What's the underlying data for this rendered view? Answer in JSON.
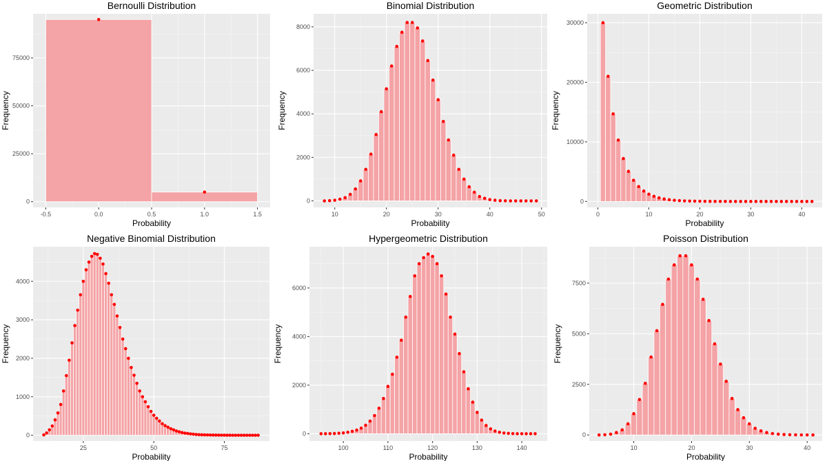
{
  "chart_data": [
    {
      "type": "bar",
      "title": "Bernoulli Distribution",
      "xlabel": "Probability",
      "ylabel": "Frequency",
      "xlim": [
        -0.62,
        1.62
      ],
      "ylim": [
        -3000,
        98000
      ],
      "xticks": [
        -0.5,
        0.0,
        0.5,
        1.0,
        1.5
      ],
      "xtick_labels": [
        "-0.5",
        "0.0",
        "0.5",
        "1.0",
        "1.5"
      ],
      "yticks": [
        0,
        25000,
        50000,
        75000
      ],
      "ytick_labels": [
        "0",
        "25000",
        "50000",
        "75000"
      ],
      "bar_width": 1,
      "x": [
        0,
        1
      ],
      "values": [
        95000,
        5000
      ]
    },
    {
      "type": "bar",
      "title": "Binomial Distribution",
      "xlabel": "Probability",
      "ylabel": "Frequency",
      "xlim": [
        5.9,
        51.1
      ],
      "ylim": [
        -300,
        8600
      ],
      "xticks": [
        10,
        20,
        30,
        40,
        50
      ],
      "xtick_labels": [
        "10",
        "20",
        "30",
        "40",
        "50"
      ],
      "yticks": [
        0,
        2000,
        4000,
        6000,
        8000
      ],
      "ytick_labels": [
        "0",
        "2000",
        "4000",
        "6000",
        "8000"
      ],
      "bar_width": 1,
      "x": [
        8,
        9,
        10,
        11,
        12,
        13,
        14,
        15,
        16,
        17,
        18,
        19,
        20,
        21,
        22,
        23,
        24,
        25,
        26,
        27,
        28,
        29,
        30,
        31,
        32,
        33,
        34,
        35,
        36,
        37,
        38,
        39,
        40,
        41,
        42,
        43,
        44,
        45,
        46,
        47,
        48,
        49
      ],
      "values": [
        0,
        10,
        30,
        80,
        150,
        300,
        550,
        920,
        1450,
        2150,
        3050,
        4100,
        5150,
        6200,
        7100,
        7750,
        8200,
        8200,
        7950,
        7350,
        6450,
        5550,
        4650,
        3650,
        2800,
        2100,
        1450,
        1000,
        650,
        400,
        200,
        120,
        60,
        30,
        10,
        5,
        0,
        0,
        0,
        0,
        0,
        0
      ]
    },
    {
      "type": "bar",
      "title": "Geometric Distribution",
      "xlabel": "Probability",
      "ylabel": "Frequency",
      "xlim": [
        -2.1,
        44.0
      ],
      "ylim": [
        -1000,
        31500
      ],
      "xticks": [
        0,
        10,
        20,
        30,
        40
      ],
      "xtick_labels": [
        "0",
        "10",
        "20",
        "30",
        "40"
      ],
      "yticks": [
        0,
        10000,
        20000,
        30000
      ],
      "ytick_labels": [
        "0",
        "10000",
        "20000",
        "30000"
      ],
      "bar_width": 1,
      "x": [
        1,
        2,
        3,
        4,
        5,
        6,
        7,
        8,
        9,
        10,
        11,
        12,
        13,
        14,
        15,
        16,
        17,
        18,
        19,
        20,
        21,
        22,
        23,
        24,
        25,
        26,
        27,
        28,
        29,
        30,
        31,
        32,
        33,
        34,
        35,
        36,
        37,
        38,
        39,
        40,
        41,
        42
      ],
      "values": [
        30000,
        21000,
        14700,
        10300,
        7200,
        5050,
        3550,
        2500,
        1750,
        1220,
        860,
        600,
        420,
        290,
        200,
        140,
        100,
        70,
        50,
        35,
        25,
        15,
        10,
        5,
        5,
        0,
        0,
        0,
        0,
        0,
        0,
        0,
        0,
        0,
        0,
        0,
        0,
        0,
        0,
        0,
        0,
        0
      ]
    },
    {
      "type": "bar",
      "title": "Negative Binomial Distribution",
      "xlabel": "Probability",
      "ylabel": "Frequency",
      "xlim": [
        7.2,
        91.0
      ],
      "ylim": [
        -150,
        4900
      ],
      "xticks": [
        25,
        50,
        75
      ],
      "xtick_labels": [
        "25",
        "50",
        "75"
      ],
      "yticks": [
        0,
        1000,
        2000,
        3000,
        4000
      ],
      "ytick_labels": [
        "0",
        "1000",
        "2000",
        "3000",
        "4000"
      ],
      "bar_width": 1,
      "x": [
        11,
        12,
        13,
        14,
        15,
        16,
        17,
        18,
        19,
        20,
        21,
        22,
        23,
        24,
        25,
        26,
        27,
        28,
        29,
        30,
        31,
        32,
        33,
        34,
        35,
        36,
        37,
        38,
        39,
        40,
        41,
        42,
        43,
        44,
        45,
        46,
        47,
        48,
        49,
        50,
        51,
        52,
        53,
        54,
        55,
        56,
        57,
        58,
        59,
        60,
        61,
        62,
        63,
        64,
        65,
        66,
        67,
        68,
        69,
        70,
        71,
        72,
        73,
        74,
        75,
        76,
        77,
        78,
        79,
        80,
        81,
        82,
        83,
        84,
        85,
        86,
        87
      ],
      "values": [
        10,
        60,
        140,
        240,
        400,
        580,
        800,
        1150,
        1550,
        1950,
        2400,
        2850,
        3250,
        3650,
        4000,
        4300,
        4500,
        4650,
        4720,
        4700,
        4600,
        4450,
        4200,
        3950,
        3650,
        3400,
        3100,
        2800,
        2500,
        2250,
        2000,
        1760,
        1560,
        1350,
        1150,
        1000,
        870,
        740,
        620,
        520,
        440,
        370,
        300,
        250,
        210,
        170,
        140,
        110,
        90,
        70,
        55,
        45,
        35,
        28,
        20,
        15,
        12,
        10,
        8,
        6,
        5,
        4,
        3,
        2,
        2,
        1,
        1,
        0,
        0,
        0,
        0,
        0,
        0,
        0,
        0,
        0,
        0
      ]
    },
    {
      "type": "bar",
      "title": "Hypergeometric Distribution",
      "xlabel": "Probability",
      "ylabel": "Frequency",
      "xlim": [
        92.4,
        145.7
      ],
      "ylim": [
        -300,
        7700
      ],
      "xticks": [
        100,
        110,
        120,
        130,
        140
      ],
      "xtick_labels": [
        "100",
        "110",
        "120",
        "130",
        "140"
      ],
      "yticks": [
        0,
        2000,
        4000,
        6000
      ],
      "ytick_labels": [
        "0",
        "2000",
        "4000",
        "6000"
      ],
      "bar_width": 1,
      "x": [
        95,
        96,
        97,
        98,
        99,
        100,
        101,
        102,
        103,
        104,
        105,
        106,
        107,
        108,
        109,
        110,
        111,
        112,
        113,
        114,
        115,
        116,
        117,
        118,
        119,
        120,
        121,
        122,
        123,
        124,
        125,
        126,
        127,
        128,
        129,
        130,
        131,
        132,
        133,
        134,
        135,
        136,
        137,
        138,
        139,
        140,
        141,
        142,
        143
      ],
      "values": [
        0,
        0,
        5,
        10,
        20,
        35,
        60,
        100,
        150,
        230,
        350,
        520,
        750,
        1050,
        1450,
        1950,
        2450,
        3150,
        3850,
        4800,
        5650,
        6500,
        7000,
        7250,
        7400,
        7300,
        7000,
        6500,
        5750,
        4800,
        4100,
        3300,
        2550,
        1850,
        1300,
        880,
        560,
        340,
        200,
        110,
        60,
        30,
        15,
        5,
        0,
        0,
        0,
        0,
        0
      ]
    },
    {
      "type": "bar",
      "title": "Poisson Distribution",
      "xlabel": "Probability",
      "ylabel": "Frequency",
      "xlim": [
        2.3,
        42.6
      ],
      "ylim": [
        -300,
        9300
      ],
      "xticks": [
        10,
        20,
        30,
        40
      ],
      "xtick_labels": [
        "10",
        "20",
        "30",
        "40"
      ],
      "yticks": [
        0,
        2500,
        5000,
        7500
      ],
      "ytick_labels": [
        "0",
        "2500",
        "5000",
        "7500"
      ],
      "bar_width": 1,
      "x": [
        4,
        5,
        6,
        7,
        8,
        9,
        10,
        11,
        12,
        13,
        14,
        15,
        16,
        17,
        18,
        19,
        20,
        21,
        22,
        23,
        24,
        25,
        26,
        27,
        28,
        29,
        30,
        31,
        32,
        33,
        34,
        35,
        36,
        37,
        38,
        39,
        40,
        41
      ],
      "values": [
        0,
        10,
        40,
        120,
        250,
        550,
        1050,
        1750,
        2550,
        3850,
        5150,
        6450,
        7700,
        8400,
        8850,
        8850,
        8400,
        7700,
        6700,
        5650,
        4500,
        3500,
        2650,
        1800,
        1250,
        850,
        550,
        330,
        200,
        120,
        70,
        40,
        20,
        10,
        5,
        2,
        1,
        0
      ]
    }
  ]
}
